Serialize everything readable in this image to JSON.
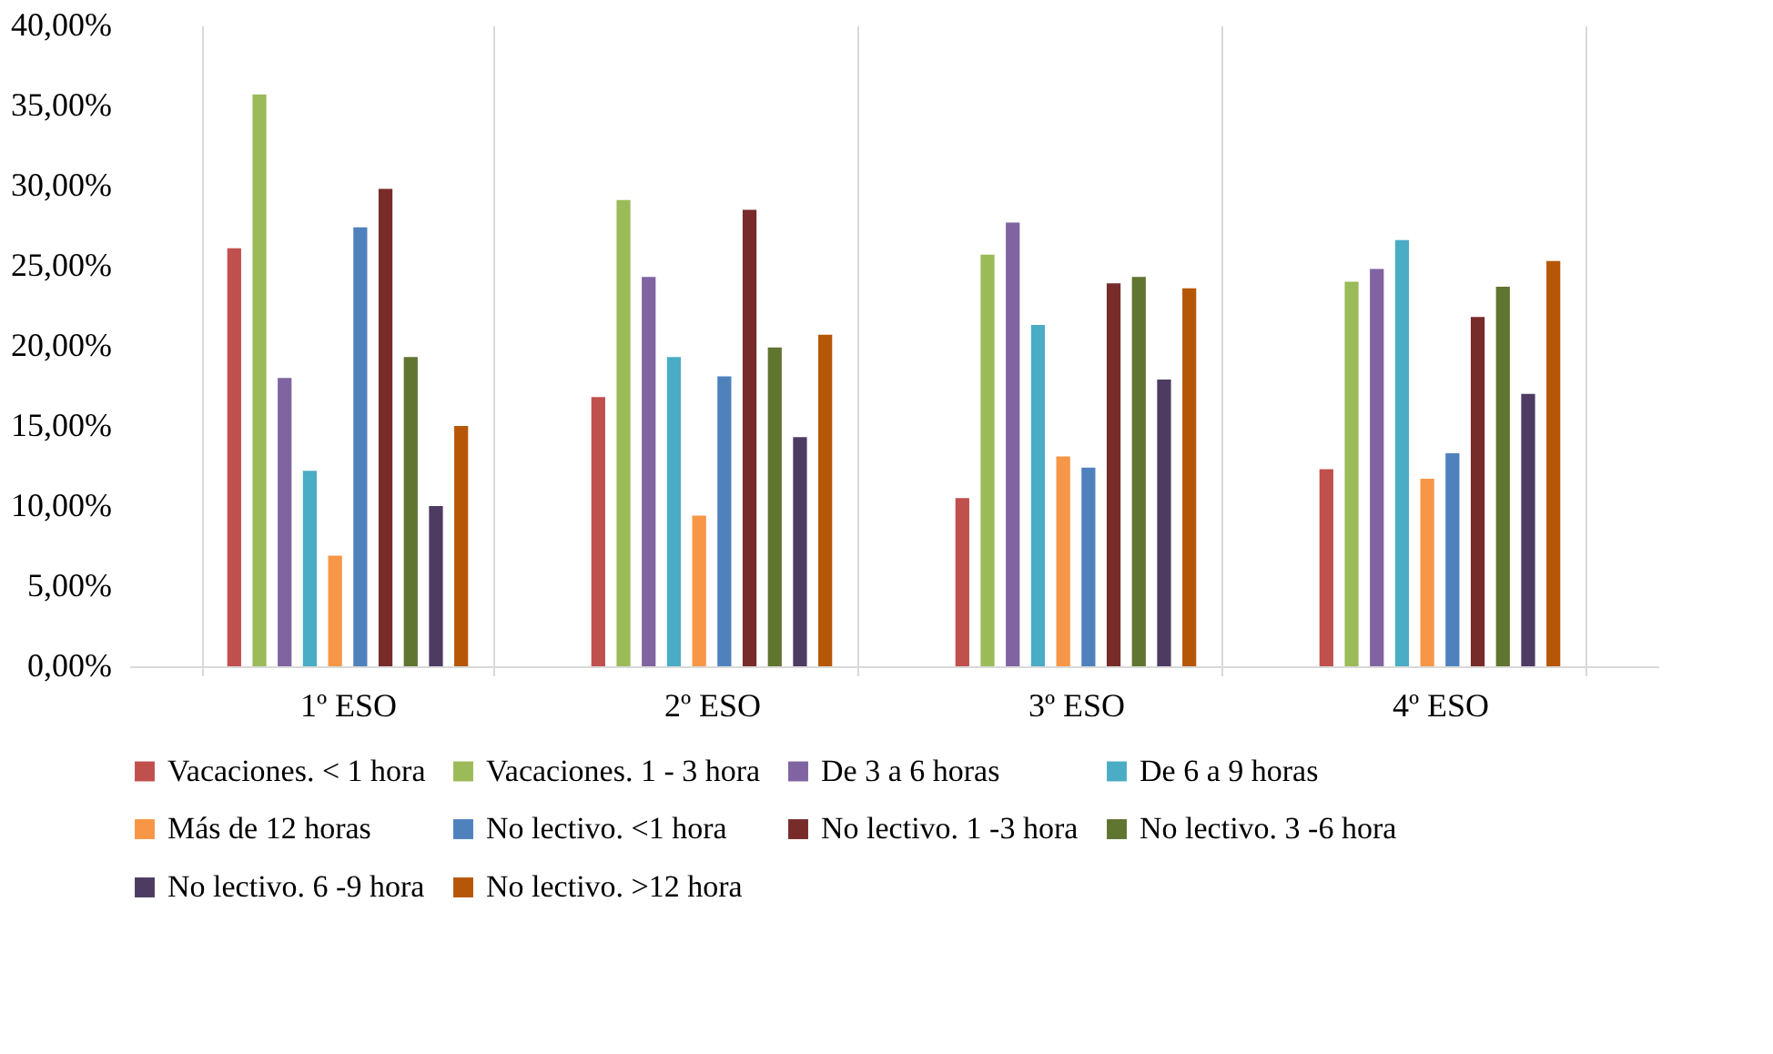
{
  "chart_data": {
    "type": "bar",
    "categories": [
      "1º ESO",
      "2º ESO",
      "3º ESO",
      "4º ESO"
    ],
    "series": [
      {
        "name": "Vacaciones. < 1 hora",
        "color": "#c0504d",
        "values": [
          26.1,
          16.8,
          10.5,
          12.3
        ]
      },
      {
        "name": "Vacaciones. 1 - 3 hora",
        "color": "#9bbb59",
        "values": [
          35.7,
          29.1,
          25.7,
          24.0
        ]
      },
      {
        "name": "De 3 a 6 horas",
        "color": "#8064a2",
        "values": [
          18.0,
          24.3,
          27.7,
          24.8
        ]
      },
      {
        "name": "De 6 a 9 horas",
        "color": "#4bacc6",
        "values": [
          12.2,
          19.3,
          21.3,
          26.6
        ]
      },
      {
        "name": "Más de 12 horas",
        "color": "#f79646",
        "values": [
          6.9,
          9.4,
          13.1,
          11.7
        ]
      },
      {
        "name": "No lectivo. <1 hora",
        "color": "#4f81bd",
        "values": [
          27.4,
          18.1,
          12.4,
          13.3
        ]
      },
      {
        "name": "No lectivo. 1 -3 hora",
        "color": "#772c2a",
        "values": [
          29.8,
          28.5,
          23.9,
          21.8
        ]
      },
      {
        "name": "No lectivo. 3 -6 hora",
        "color": "#5f7530",
        "values": [
          19.3,
          19.9,
          24.3,
          23.7
        ]
      },
      {
        "name": "No lectivo. 6 -9 hora",
        "color": "#4d3b62",
        "values": [
          10.0,
          14.3,
          17.9,
          17.0
        ]
      },
      {
        "name": "No lectivo. >12 hora",
        "color": "#b65708",
        "values": [
          15.0,
          20.7,
          23.6,
          25.3
        ]
      }
    ],
    "ylim": [
      0,
      40
    ],
    "yticks": [
      {
        "value": 0,
        "label": "0,00%"
      },
      {
        "value": 5,
        "label": "5,00%"
      },
      {
        "value": 10,
        "label": "10,00%"
      },
      {
        "value": 15,
        "label": "15,00%"
      },
      {
        "value": 20,
        "label": "20,00%"
      },
      {
        "value": 25,
        "label": "25,00%"
      },
      {
        "value": 30,
        "label": "30,00%"
      },
      {
        "value": 35,
        "label": "35,00%"
      },
      {
        "value": 40,
        "label": "40,00%"
      }
    ],
    "grid": "x",
    "legend": "bottom"
  }
}
